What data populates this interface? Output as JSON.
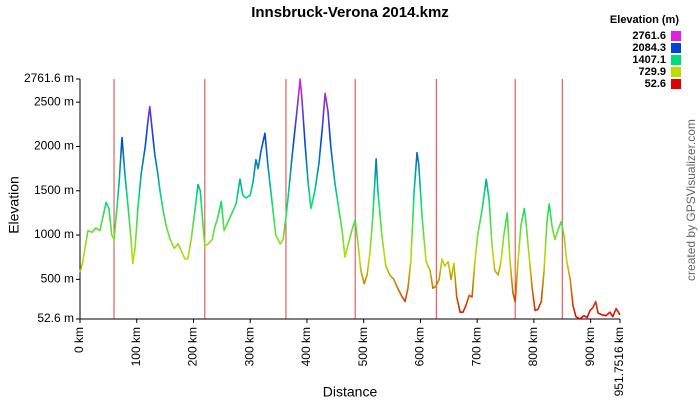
{
  "chart_data": {
    "type": "line",
    "title": "Innsbruck-Verona 2014.kmz",
    "xlabel": "Distance",
    "ylabel": "Elevation",
    "credit": "created by GPSVisualizer.com",
    "xlim": [
      0,
      951.7516
    ],
    "ylim": [
      52.6,
      2761.6
    ],
    "xticks": [
      {
        "value": 0,
        "label": "0 km"
      },
      {
        "value": 100,
        "label": "100 km"
      },
      {
        "value": 200,
        "label": "200 km"
      },
      {
        "value": 300,
        "label": "300 km"
      },
      {
        "value": 400,
        "label": "400 km"
      },
      {
        "value": 500,
        "label": "500 km"
      },
      {
        "value": 600,
        "label": "600 km"
      },
      {
        "value": 700,
        "label": "700 km"
      },
      {
        "value": 800,
        "label": "800 km"
      },
      {
        "value": 900,
        "label": "900 km"
      },
      {
        "value": 951.7516,
        "label": "951.7516 km"
      }
    ],
    "yticks": [
      {
        "value": 52.6,
        "label": "52.6 m"
      },
      {
        "value": 500,
        "label": "500 m"
      },
      {
        "value": 1000,
        "label": "1000 m"
      },
      {
        "value": 1500,
        "label": "1500 m"
      },
      {
        "value": 2000,
        "label": "2000 m"
      },
      {
        "value": 2500,
        "label": "2500 m"
      },
      {
        "value": 2761.6,
        "label": "2761.6 m"
      }
    ],
    "segment_breaks": [
      60,
      220,
      363,
      485,
      628,
      767,
      850
    ],
    "segment_break_color": "#e04040",
    "color_scale": {
      "title": "Elevation (m)",
      "stops": [
        {
          "value": 2761.6,
          "color": "#dd22dd"
        },
        {
          "value": 2084.3,
          "color": "#0044dd"
        },
        {
          "value": 1407.1,
          "color": "#00dd77"
        },
        {
          "value": 729.9,
          "color": "#bbdd00"
        },
        {
          "value": 52.6,
          "color": "#dd0000"
        }
      ]
    },
    "x": [
      0,
      5,
      14,
      21,
      28,
      35,
      42,
      46,
      51,
      56,
      60,
      65,
      69,
      74,
      79,
      85,
      90,
      93,
      97,
      102,
      108,
      115,
      120,
      123,
      127,
      132,
      137,
      141,
      146,
      152,
      159,
      166,
      173,
      180,
      185,
      190,
      196,
      203,
      208,
      212,
      217,
      220,
      226,
      233,
      238,
      243,
      249,
      254,
      261,
      268,
      275,
      282,
      287,
      293,
      300,
      305,
      310,
      314,
      319,
      326,
      331,
      338,
      345,
      353,
      358,
      363,
      368,
      374,
      379,
      384,
      388,
      391,
      397,
      402,
      407,
      414,
      421,
      427,
      432,
      437,
      442,
      449,
      456,
      462,
      467,
      472,
      479,
      485,
      490,
      495,
      501,
      506,
      511,
      516,
      522,
      525,
      532,
      539,
      546,
      553,
      560,
      568,
      573,
      578,
      583,
      589,
      594,
      597,
      603,
      610,
      617,
      622,
      627,
      633,
      638,
      643,
      649,
      654,
      659,
      664,
      670,
      675,
      680,
      686,
      691,
      696,
      701,
      709,
      716,
      721,
      726,
      731,
      737,
      742,
      747,
      753,
      758,
      763,
      767,
      772,
      777,
      783,
      786,
      791,
      797,
      802,
      807,
      813,
      818,
      823,
      827,
      832,
      837,
      842,
      848,
      853,
      858,
      864,
      869,
      874,
      881,
      888,
      894,
      899,
      904,
      909,
      913,
      920,
      927,
      934,
      939,
      945,
      951.7516
    ],
    "values": [
      580,
      700,
      1050,
      1030,
      1080,
      1050,
      1250,
      1370,
      1300,
      1000,
      950,
      1300,
      1600,
      2100,
      1700,
      1300,
      950,
      680,
      850,
      1300,
      1700,
      2000,
      2300,
      2450,
      2200,
      1900,
      1700,
      1500,
      1300,
      1100,
      950,
      850,
      900,
      800,
      730,
      730,
      950,
      1300,
      1570,
      1500,
      1100,
      880,
      900,
      950,
      1100,
      1200,
      1380,
      1050,
      1150,
      1250,
      1350,
      1630,
      1450,
      1420,
      1450,
      1600,
      1850,
      1750,
      1950,
      2150,
      1800,
      1400,
      1000,
      900,
      950,
      1200,
      1500,
      1900,
      2200,
      2500,
      2761.6,
      2550,
      2000,
      1600,
      1300,
      1500,
      1800,
      2200,
      2600,
      2400,
      2000,
      1600,
      1300,
      1050,
      750,
      880,
      1050,
      1170,
      900,
      600,
      450,
      550,
      800,
      1200,
      1860,
      1500,
      1000,
      650,
      550,
      500,
      400,
      300,
      250,
      400,
      700,
      1500,
      1930,
      1800,
      1200,
      700,
      600,
      400,
      420,
      500,
      730,
      650,
      700,
      500,
      680,
      300,
      130,
      130,
      200,
      320,
      300,
      700,
      1000,
      1300,
      1630,
      1400,
      900,
      600,
      550,
      700,
      1000,
      1250,
      700,
      350,
      250,
      700,
      1100,
      1300,
      1150,
      800,
      400,
      150,
      160,
      250,
      600,
      1150,
      1350,
      1100,
      950,
      1050,
      1150,
      1000,
      700,
      500,
      200,
      80,
      52.6,
      90,
      70,
      150,
      180,
      250,
      120,
      100,
      90,
      130,
      80,
      170,
      100
    ]
  }
}
